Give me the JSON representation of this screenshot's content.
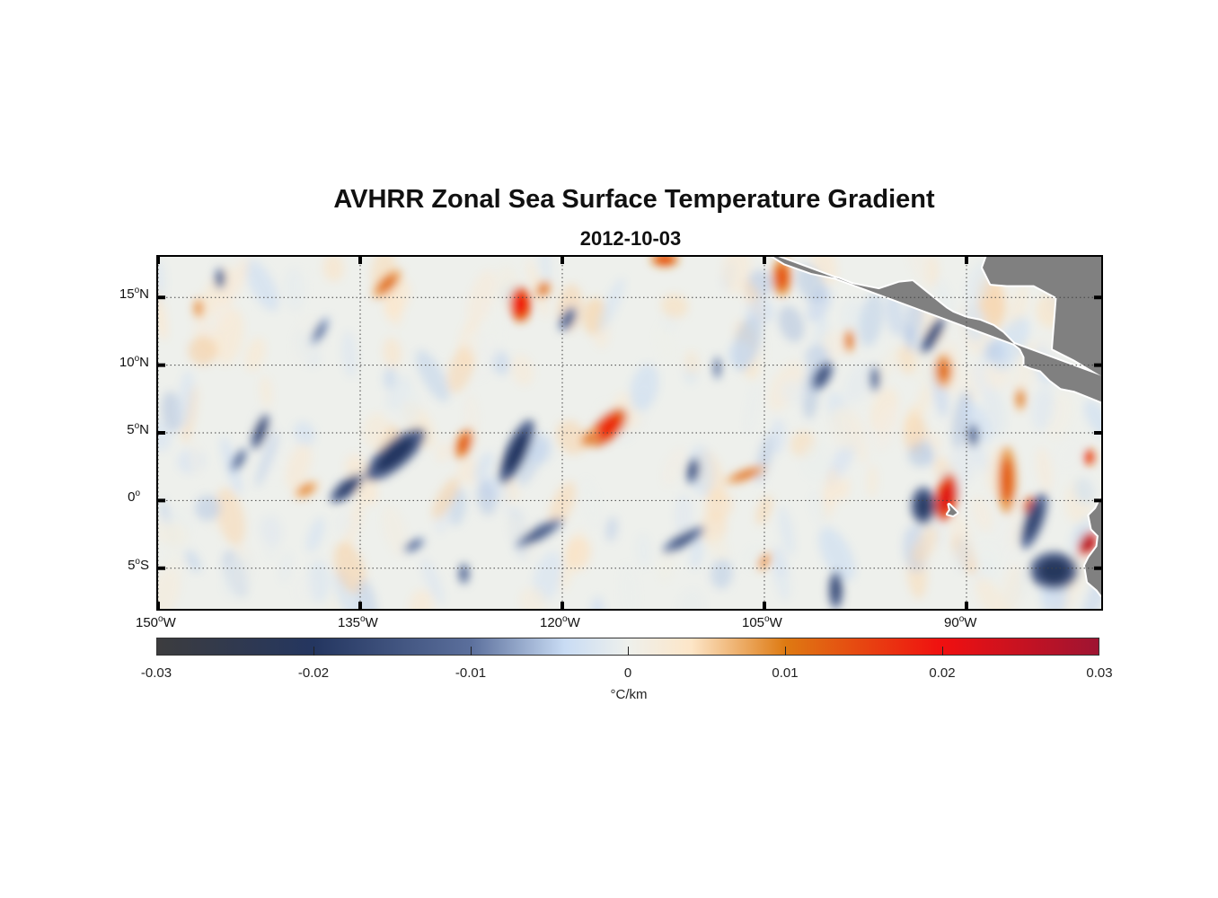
{
  "chart_data": {
    "type": "heatmap",
    "title": "AVHRR Zonal Sea Surface Temperature Gradient",
    "subtitle": "2012-10-03",
    "projection": "lon-lat",
    "lon_range": [
      -150,
      -80
    ],
    "lat_range": [
      -8,
      18
    ],
    "degree_symbol": "o",
    "lon_ticks": [
      {
        "value": -150,
        "num": "150",
        "hemi": "W"
      },
      {
        "value": -135,
        "num": "135",
        "hemi": "W"
      },
      {
        "value": -120,
        "num": "120",
        "hemi": "W"
      },
      {
        "value": -105,
        "num": "105",
        "hemi": "W"
      },
      {
        "value": -90,
        "num": "90",
        "hemi": "W"
      }
    ],
    "lat_ticks": [
      {
        "value": 15,
        "num": "15",
        "hemi": "N"
      },
      {
        "value": 10,
        "num": "10",
        "hemi": "N"
      },
      {
        "value": 5,
        "num": "5",
        "hemi": "N"
      },
      {
        "value": 0,
        "num": "0",
        "hemi": ""
      },
      {
        "value": -5,
        "num": "5",
        "hemi": "S"
      }
    ],
    "grid": true,
    "colorbar": {
      "range": [
        -0.03,
        0.03
      ],
      "ticks": [
        "-0.03",
        "-0.02",
        "-0.01",
        "0",
        "0.01",
        "0.02",
        "0.03"
      ],
      "tick_values": [
        -0.03,
        -0.02,
        -0.01,
        0,
        0.01,
        0.02,
        0.03
      ],
      "units": "°C/km",
      "location": "bottom",
      "colormap": [
        [
          -0.03,
          "#3c3c3e"
        ],
        [
          -0.02,
          "#243660"
        ],
        [
          -0.01,
          "#5b6f9c"
        ],
        [
          -0.004,
          "#c9dcf4"
        ],
        [
          0,
          "#eef0ec"
        ],
        [
          0.004,
          "#fde6c8"
        ],
        [
          0.01,
          "#de7a12"
        ],
        [
          0.02,
          "#f01010"
        ],
        [
          0.03,
          "#9e1432"
        ]
      ]
    },
    "anomalies": [
      {
        "lon": -123.1,
        "lat": 14.5,
        "value": 0.02,
        "rx": 0.8,
        "ry": 1.3,
        "rot": 0
      },
      {
        "lon": -116.6,
        "lat": 5.4,
        "value": 0.018,
        "rx": 0.9,
        "ry": 1.8,
        "rot": 45
      },
      {
        "lon": -132.4,
        "lat": 3.4,
        "value": -0.02,
        "rx": 1.0,
        "ry": 2.8,
        "rot": 50
      },
      {
        "lon": -123.4,
        "lat": 3.6,
        "value": -0.02,
        "rx": 0.8,
        "ry": 2.6,
        "rot": 25
      },
      {
        "lon": -136.0,
        "lat": 0.9,
        "value": -0.018,
        "rx": 0.6,
        "ry": 1.5,
        "rot": 50
      },
      {
        "lon": -127.3,
        "lat": 4.2,
        "value": 0.013,
        "rx": 0.6,
        "ry": 1.2,
        "rot": 20
      },
      {
        "lon": -133.0,
        "lat": 16.0,
        "value": 0.011,
        "rx": 0.6,
        "ry": 1.4,
        "rot": 45
      },
      {
        "lon": -142.4,
        "lat": 5.1,
        "value": -0.016,
        "rx": 0.5,
        "ry": 1.4,
        "rot": 20
      },
      {
        "lon": -103.7,
        "lat": 16.5,
        "value": 0.014,
        "rx": 0.7,
        "ry": 1.4,
        "rot": 0
      },
      {
        "lon": -100.7,
        "lat": 9.2,
        "value": -0.015,
        "rx": 0.6,
        "ry": 1.2,
        "rot": 30
      },
      {
        "lon": -91.7,
        "lat": 9.6,
        "value": 0.011,
        "rx": 0.7,
        "ry": 1.3,
        "rot": 0
      },
      {
        "lon": -91.5,
        "lat": 0.2,
        "value": 0.022,
        "rx": 0.8,
        "ry": 1.8,
        "rot": 10
      },
      {
        "lon": -93.2,
        "lat": -0.4,
        "value": -0.019,
        "rx": 0.9,
        "ry": 1.4,
        "rot": 0
      },
      {
        "lon": -87.0,
        "lat": 1.5,
        "value": 0.013,
        "rx": 0.7,
        "ry": 2.5,
        "rot": 0
      },
      {
        "lon": -85.3,
        "lat": -0.5,
        "value": 0.016,
        "rx": 0.5,
        "ry": 0.8,
        "rot": 0
      },
      {
        "lon": -81.0,
        "lat": -3.2,
        "value": 0.028,
        "rx": 0.6,
        "ry": 1.0,
        "rot": 30
      },
      {
        "lon": -83.5,
        "lat": -5.2,
        "value": -0.021,
        "rx": 1.8,
        "ry": 1.4,
        "rot": 0
      },
      {
        "lon": -85.0,
        "lat": -1.5,
        "value": -0.017,
        "rx": 0.7,
        "ry": 2.2,
        "rot": 20
      },
      {
        "lon": -99.7,
        "lat": -6.6,
        "value": -0.017,
        "rx": 0.5,
        "ry": 1.4,
        "rot": 0
      },
      {
        "lon": -121.7,
        "lat": -2.4,
        "value": -0.014,
        "rx": 0.5,
        "ry": 2.0,
        "rot": 60
      },
      {
        "lon": -111.0,
        "lat": -2.9,
        "value": -0.014,
        "rx": 0.5,
        "ry": 1.8,
        "rot": 60
      },
      {
        "lon": -106.4,
        "lat": 1.9,
        "value": 0.011,
        "rx": 0.4,
        "ry": 1.6,
        "rot": 70
      },
      {
        "lon": -110.3,
        "lat": 2.2,
        "value": -0.014,
        "rx": 0.5,
        "ry": 1.0,
        "rot": 10
      },
      {
        "lon": -119.6,
        "lat": 13.4,
        "value": -0.013,
        "rx": 0.5,
        "ry": 1.0,
        "rot": 30
      },
      {
        "lon": -112.4,
        "lat": 17.8,
        "value": 0.016,
        "rx": 1.0,
        "ry": 0.5,
        "rot": 0
      },
      {
        "lon": -118.0,
        "lat": 4.6,
        "value": 0.011,
        "rx": 0.5,
        "ry": 0.8,
        "rot": 40
      },
      {
        "lon": -145.4,
        "lat": 16.4,
        "value": -0.013,
        "rx": 0.4,
        "ry": 0.8,
        "rot": 0
      },
      {
        "lon": -139.0,
        "lat": 0.8,
        "value": 0.009,
        "rx": 0.5,
        "ry": 1.0,
        "rot": 60
      },
      {
        "lon": -80.9,
        "lat": 3.2,
        "value": 0.02,
        "rx": 0.4,
        "ry": 0.6,
        "rot": 0
      },
      {
        "lon": -98.7,
        "lat": 11.8,
        "value": 0.011,
        "rx": 0.4,
        "ry": 0.9,
        "rot": 0
      },
      {
        "lon": -92.5,
        "lat": 12.2,
        "value": -0.016,
        "rx": 0.5,
        "ry": 1.6,
        "rot": 30
      },
      {
        "lon": -127.3,
        "lat": -5.4,
        "value": -0.013,
        "rx": 0.4,
        "ry": 0.8,
        "rot": 0
      },
      {
        "lon": -121.4,
        "lat": 15.6,
        "value": 0.011,
        "rx": 0.5,
        "ry": 0.7,
        "rot": 30
      },
      {
        "lon": -147.0,
        "lat": 14.2,
        "value": 0.009,
        "rx": 0.4,
        "ry": 0.8,
        "rot": 0
      },
      {
        "lon": -138.0,
        "lat": 12.5,
        "value": -0.01,
        "rx": 0.4,
        "ry": 1.2,
        "rot": 30
      },
      {
        "lon": -105.0,
        "lat": -4.5,
        "value": 0.009,
        "rx": 0.4,
        "ry": 0.8,
        "rot": 30
      },
      {
        "lon": -96.8,
        "lat": 9.0,
        "value": -0.012,
        "rx": 0.4,
        "ry": 1.0,
        "rot": 0
      },
      {
        "lon": -131.0,
        "lat": -3.3,
        "value": -0.011,
        "rx": 0.4,
        "ry": 0.9,
        "rot": 60
      },
      {
        "lon": -144.0,
        "lat": 3.0,
        "value": -0.012,
        "rx": 0.4,
        "ry": 1.0,
        "rot": 30
      },
      {
        "lon": -108.5,
        "lat": 9.8,
        "value": -0.011,
        "rx": 0.3,
        "ry": 0.9,
        "rot": 0
      },
      {
        "lon": -86.0,
        "lat": 7.5,
        "value": 0.01,
        "rx": 0.4,
        "ry": 0.9,
        "rot": 0
      },
      {
        "lon": -89.5,
        "lat": 4.8,
        "value": -0.013,
        "rx": 0.4,
        "ry": 0.9,
        "rot": 0
      }
    ],
    "land_color": "#808080"
  }
}
